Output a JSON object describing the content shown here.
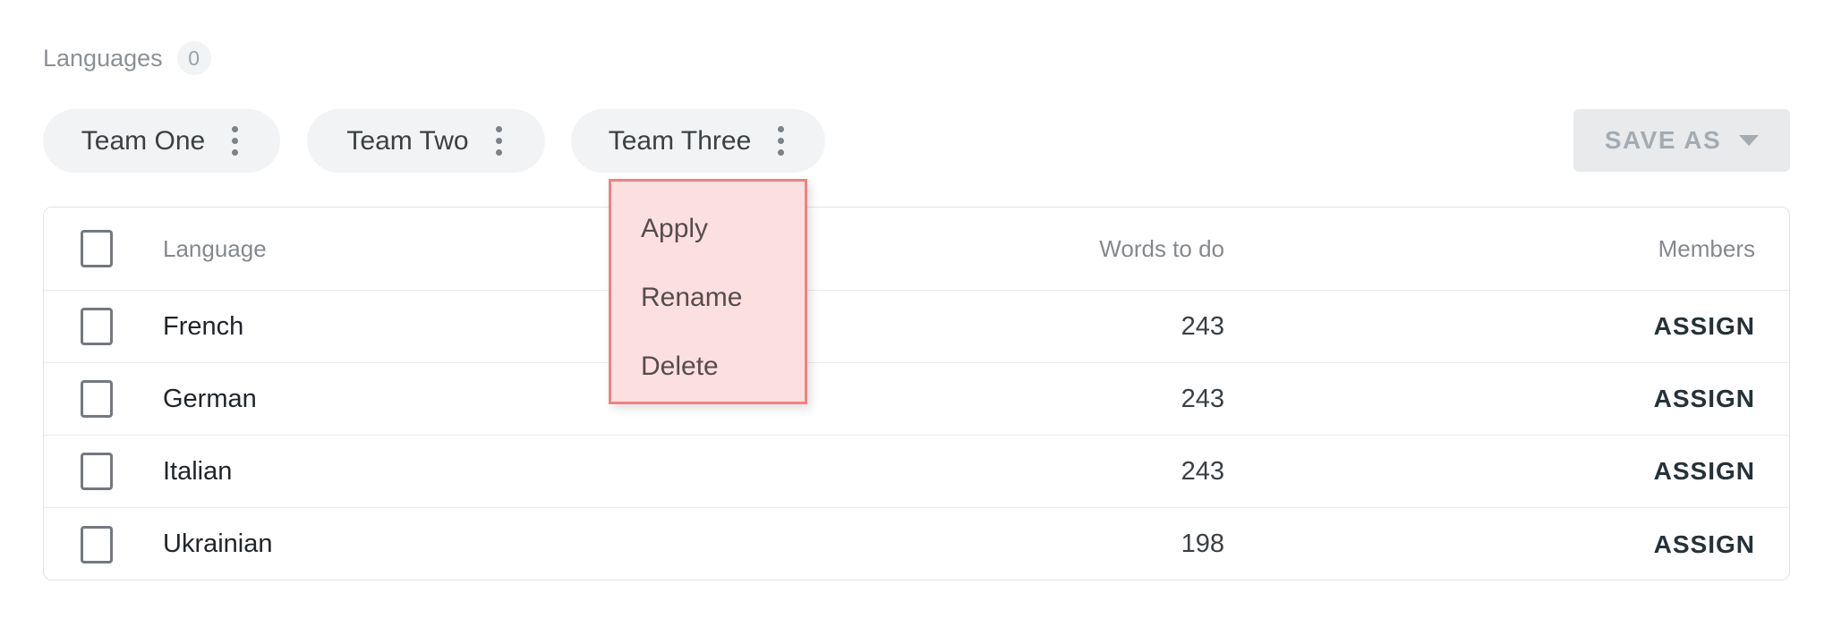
{
  "page": {
    "title": "Languages",
    "count_badge": "0"
  },
  "toolbar": {
    "teams": [
      {
        "label": "Team One"
      },
      {
        "label": "Team Two"
      },
      {
        "label": "Team Three"
      }
    ],
    "save_as_label": "SAVE AS"
  },
  "context_menu": {
    "owner": "Team Three",
    "items": [
      {
        "label": "Apply"
      },
      {
        "label": "Rename"
      },
      {
        "label": "Delete"
      }
    ]
  },
  "table": {
    "columns": {
      "language": "Language",
      "words_to_do": "Words to do",
      "members": "Members"
    },
    "rows": [
      {
        "language": "French",
        "words_to_do": "243",
        "action": "ASSIGN",
        "checked": false
      },
      {
        "language": "German",
        "words_to_do": "243",
        "action": "ASSIGN",
        "checked": false
      },
      {
        "language": "Italian",
        "words_to_do": "243",
        "action": "ASSIGN",
        "checked": false
      },
      {
        "language": "Ukrainian",
        "words_to_do": "198",
        "action": "ASSIGN",
        "checked": false
      }
    ]
  },
  "icons": {
    "kebab": "more-vert-icon",
    "caret": "caret-down-icon"
  },
  "colors": {
    "menu_background": "#fcdfdf",
    "menu_border": "#ef8282",
    "chip_background": "#f2f3f5",
    "save_button_background": "#e8eaec",
    "muted_text": "#85898e",
    "dark_text": "#212529",
    "assign_text": "#263238"
  }
}
